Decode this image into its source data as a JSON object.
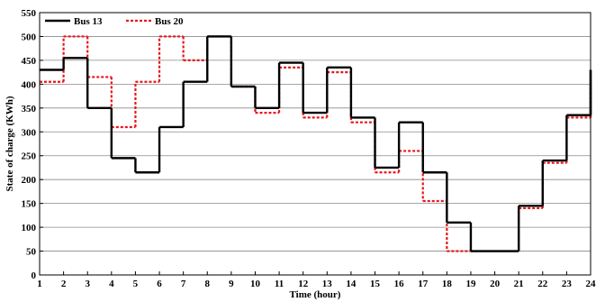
{
  "chart_data": {
    "type": "line",
    "step": true,
    "xlabel": "Time (hour)",
    "ylabel": "State of charge (KWh)",
    "xlim": [
      1,
      24
    ],
    "ylim": [
      0,
      550
    ],
    "x_ticks": [
      1,
      2,
      3,
      4,
      5,
      6,
      7,
      8,
      9,
      10,
      11,
      12,
      13,
      14,
      15,
      16,
      17,
      18,
      19,
      20,
      21,
      22,
      23,
      24
    ],
    "y_ticks": [
      0,
      50,
      100,
      150,
      200,
      250,
      300,
      350,
      400,
      450,
      500,
      550
    ],
    "grid": "horizontal",
    "legend_position": "top-left",
    "x": [
      1,
      2,
      3,
      4,
      5,
      6,
      7,
      8,
      9,
      10,
      11,
      12,
      13,
      14,
      15,
      16,
      17,
      18,
      19,
      20,
      21,
      22,
      23,
      24
    ],
    "series": [
      {
        "name": "Bus 13",
        "color": "#000000",
        "style": "solid",
        "values": [
          430,
          455,
          350,
          245,
          215,
          310,
          405,
          500,
          395,
          350,
          445,
          340,
          435,
          330,
          225,
          320,
          215,
          110,
          50,
          50,
          145,
          240,
          335,
          430
        ]
      },
      {
        "name": "Bus 20",
        "color": "#e8161c",
        "style": "dotted",
        "values": [
          405,
          500,
          415,
          310,
          405,
          500,
          450,
          500,
          395,
          340,
          435,
          330,
          425,
          320,
          215,
          260,
          155,
          50,
          50,
          50,
          140,
          235,
          330,
          400
        ]
      }
    ]
  }
}
